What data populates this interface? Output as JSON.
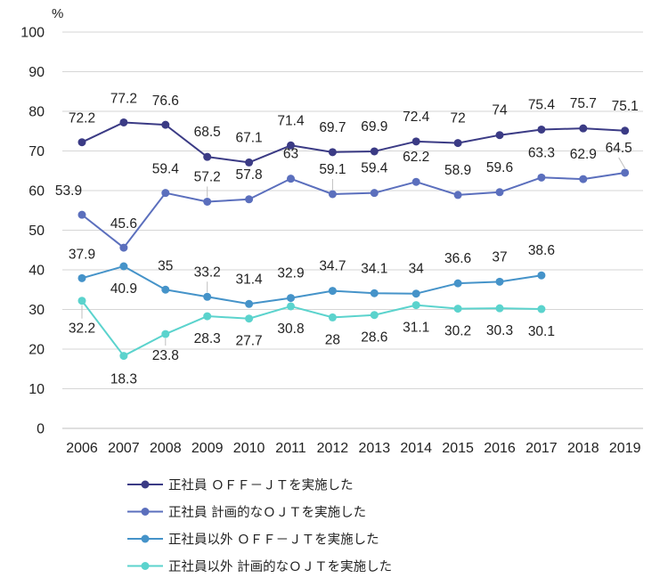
{
  "chart_data": {
    "type": "line",
    "unit": "%",
    "ylim": [
      0,
      100
    ],
    "yticks": [
      0,
      10,
      20,
      30,
      40,
      50,
      60,
      70,
      80,
      90,
      100
    ],
    "grid": true,
    "legend_position": "bottom",
    "categories": [
      "2006",
      "2007",
      "2008",
      "2009",
      "2010",
      "2011",
      "2012",
      "2013",
      "2014",
      "2015",
      "2016",
      "2017",
      "2018",
      "2019"
    ],
    "series": [
      {
        "name": "正社員 ＯＦＦ－ＪＴを実施した",
        "color": "#3b3b85",
        "values": [
          72.2,
          77.2,
          76.6,
          68.5,
          67.1,
          71.4,
          69.7,
          69.9,
          72.4,
          72,
          74,
          75.4,
          75.7,
          75.1
        ]
      },
      {
        "name": "正社員 計画的なＯＪＴを実施した",
        "color": "#5b6fbd",
        "values": [
          53.9,
          45.6,
          59.4,
          57.2,
          57.8,
          63,
          59.1,
          59.4,
          62.2,
          58.9,
          59.6,
          63.3,
          62.9,
          64.5
        ]
      },
      {
        "name": "正社員以外 ＯＦＦ－ＪＴを実施した",
        "color": "#4593c9",
        "values": [
          37.9,
          40.9,
          35,
          33.2,
          31.4,
          32.9,
          34.7,
          34.1,
          34,
          36.6,
          37,
          38.6,
          null,
          null
        ]
      },
      {
        "name": "正社員以外 計画的なＯＪＴを実施した",
        "color": "#5bd3cd",
        "values": [
          32.2,
          18.3,
          23.8,
          28.3,
          27.7,
          30.8,
          28,
          28.6,
          31.1,
          30.2,
          30.3,
          30.1,
          null,
          null
        ]
      }
    ]
  }
}
